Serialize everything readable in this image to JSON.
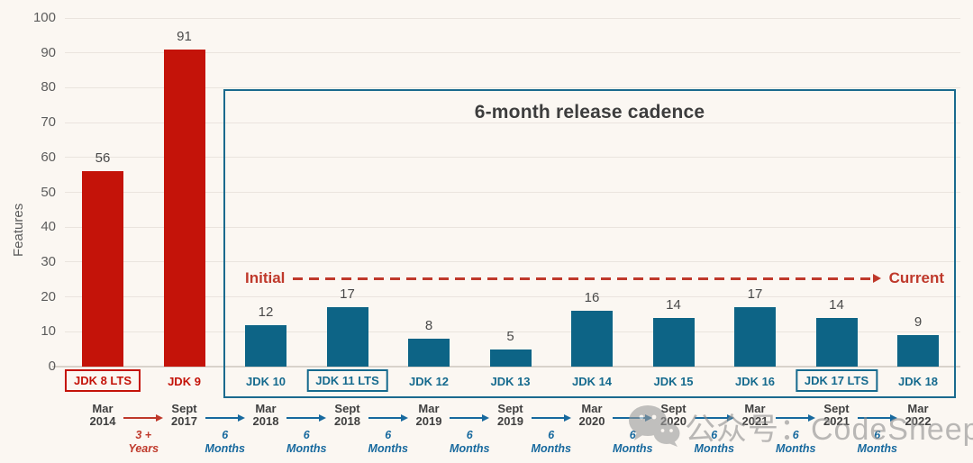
{
  "chart_data": {
    "type": "bar",
    "title": "6-month release cadence",
    "ylabel": "Features",
    "ylim": [
      0,
      100
    ],
    "ytick_step": 10,
    "grid": true,
    "legend_position": "none",
    "cadence_annotation": {
      "start_label": "Initial",
      "end_label": "Current"
    },
    "bars": [
      {
        "label": "JDK 8 LTS",
        "value": 56,
        "group": "legacy",
        "boxed": true,
        "month": "Mar",
        "year": "2014"
      },
      {
        "label": "JDK 9",
        "value": 91,
        "group": "legacy",
        "boxed": false,
        "month": "Sept",
        "year": "2017"
      },
      {
        "label": "JDK 10",
        "value": 12,
        "group": "cadence",
        "boxed": false,
        "month": "Mar",
        "year": "2018"
      },
      {
        "label": "JDK 11 LTS",
        "value": 17,
        "group": "cadence",
        "boxed": true,
        "month": "Sept",
        "year": "2018"
      },
      {
        "label": "JDK 12",
        "value": 8,
        "group": "cadence",
        "boxed": false,
        "month": "Mar",
        "year": "2019"
      },
      {
        "label": "JDK 13",
        "value": 5,
        "group": "cadence",
        "boxed": false,
        "month": "Sept",
        "year": "2019"
      },
      {
        "label": "JDK 14",
        "value": 16,
        "group": "cadence",
        "boxed": false,
        "month": "Mar",
        "year": "2020"
      },
      {
        "label": "JDK 15",
        "value": 14,
        "group": "cadence",
        "boxed": false,
        "month": "Sept",
        "year": "2020"
      },
      {
        "label": "JDK 16",
        "value": 17,
        "group": "cadence",
        "boxed": false,
        "month": "Mar",
        "year": "2021"
      },
      {
        "label": "JDK 17 LTS",
        "value": 14,
        "group": "cadence",
        "boxed": true,
        "month": "Sept",
        "year": "2021"
      },
      {
        "label": "JDK 18",
        "value": 9,
        "group": "cadence",
        "boxed": false,
        "month": "Mar",
        "year": "2022"
      }
    ],
    "intervals": [
      {
        "duration": "3 +",
        "unit": "Years",
        "style": "legacy"
      },
      {
        "duration": "6",
        "unit": "Months",
        "style": "cadence"
      },
      {
        "duration": "6",
        "unit": "Months",
        "style": "cadence"
      },
      {
        "duration": "6",
        "unit": "Months",
        "style": "cadence"
      },
      {
        "duration": "6",
        "unit": "Months",
        "style": "cadence"
      },
      {
        "duration": "6",
        "unit": "Months",
        "style": "cadence"
      },
      {
        "duration": "6",
        "unit": "Months",
        "style": "cadence"
      },
      {
        "duration": "6",
        "unit": "Months",
        "style": "cadence"
      },
      {
        "duration": "6",
        "unit": "Months",
        "style": "cadence"
      },
      {
        "duration": "6",
        "unit": "Months",
        "style": "cadence"
      }
    ]
  },
  "colors": {
    "background": "#fbf7f2",
    "legacy_bar": "#c41309",
    "cadence_bar": "#0d6486",
    "cadence_box_border": "#1a6a8e",
    "teal_label_text": "#156a8e",
    "annotation_red": "#bf392b",
    "timeline_blue": "#17699e",
    "axis_text": "#5c5c5c",
    "value_text": "#4a4a4a",
    "title_text": "#3d3d3d",
    "date_text": "#3f3f3f",
    "gridline": "#eae4de",
    "axis_line": "#d8d2cb",
    "watermark": "#8e8e8e"
  },
  "watermark": {
    "text": "公众号：CodeSheep",
    "icon": "wechat-icon"
  }
}
